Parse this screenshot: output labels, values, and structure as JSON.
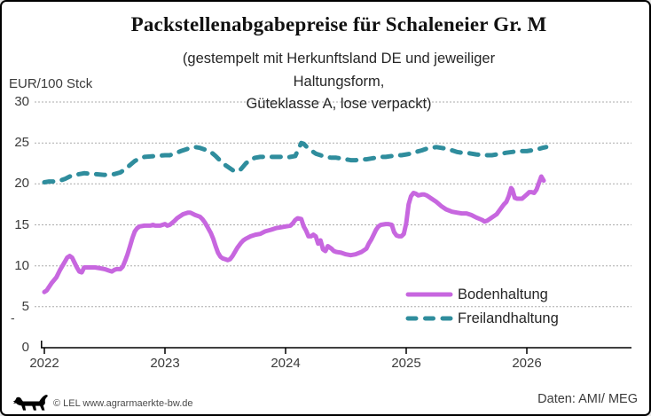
{
  "header": {
    "title": "Packstellenabgabepreise für Schaleneier Gr. M",
    "subtitle_line1": "(gestempelt mit Herkunftsland DE und jeweiliger",
    "subtitle_line2": "Haltungsform,",
    "subtitle_line3": "Güteklasse A, lose verpackt)"
  },
  "axes": {
    "y_unit_label": "EUR/100 Stck",
    "stray_dash": "-"
  },
  "legend": {
    "position": "inside lower right"
  },
  "footer": {
    "copyright": "© LEL www.agrarmaerkte-bw.de",
    "source": "Daten: AMI/ MEG",
    "logo_icon": "lel-lion-logo"
  },
  "chart_data": {
    "type": "line",
    "title": "Packstellenabgabepreise für Schaleneier Gr. M (gestempelt mit Herkunftsland DE und jeweiliger Haltungsform, Güteklasse A, lose verpackt)",
    "ylabel": "EUR/100 Stck",
    "xlabel": "",
    "ylim": [
      0,
      30
    ],
    "xlim": [
      2021.97,
      2026.87
    ],
    "grid": "horizontal dashed",
    "legend_position": "inside lower right",
    "y_ticks": [
      0,
      5,
      10,
      15,
      20,
      25,
      30
    ],
    "y_grid_values": [
      5,
      10,
      15,
      20,
      25,
      30
    ],
    "x_ticks": [
      2022,
      2023,
      2024,
      2025,
      2026
    ],
    "x_tick_labels": [
      "2022",
      "2023",
      "2024",
      "2025",
      "2026"
    ],
    "series": [
      {
        "name": "Bodenhaltung",
        "color": "#C767DF",
        "style": "solid",
        "points": [
          [
            2022.0,
            6.8
          ],
          [
            2022.02,
            7.0
          ],
          [
            2022.06,
            7.9
          ],
          [
            2022.1,
            8.6
          ],
          [
            2022.13,
            9.5
          ],
          [
            2022.17,
            10.5
          ],
          [
            2022.19,
            11.0
          ],
          [
            2022.21,
            11.2
          ],
          [
            2022.23,
            11.0
          ],
          [
            2022.25,
            10.4
          ],
          [
            2022.27,
            9.8
          ],
          [
            2022.29,
            9.3
          ],
          [
            2022.31,
            9.2
          ],
          [
            2022.33,
            9.8
          ],
          [
            2022.38,
            9.8
          ],
          [
            2022.42,
            9.8
          ],
          [
            2022.46,
            9.7
          ],
          [
            2022.5,
            9.6
          ],
          [
            2022.54,
            9.4
          ],
          [
            2022.56,
            9.3
          ],
          [
            2022.58,
            9.5
          ],
          [
            2022.6,
            9.6
          ],
          [
            2022.63,
            9.6
          ],
          [
            2022.65,
            9.9
          ],
          [
            2022.67,
            10.6
          ],
          [
            2022.69,
            11.4
          ],
          [
            2022.71,
            12.4
          ],
          [
            2022.73,
            13.4
          ],
          [
            2022.75,
            14.2
          ],
          [
            2022.77,
            14.6
          ],
          [
            2022.79,
            14.8
          ],
          [
            2022.83,
            14.9
          ],
          [
            2022.88,
            14.9
          ],
          [
            2022.9,
            15.0
          ],
          [
            2022.92,
            14.9
          ],
          [
            2022.96,
            14.9
          ],
          [
            2023.0,
            15.1
          ],
          [
            2023.02,
            14.9
          ],
          [
            2023.04,
            15.0
          ],
          [
            2023.08,
            15.5
          ],
          [
            2023.1,
            15.8
          ],
          [
            2023.13,
            16.1
          ],
          [
            2023.15,
            16.3
          ],
          [
            2023.17,
            16.4
          ],
          [
            2023.19,
            16.5
          ],
          [
            2023.21,
            16.5
          ],
          [
            2023.25,
            16.2
          ],
          [
            2023.29,
            16.0
          ],
          [
            2023.31,
            15.7
          ],
          [
            2023.33,
            15.3
          ],
          [
            2023.35,
            14.8
          ],
          [
            2023.38,
            14.0
          ],
          [
            2023.4,
            13.3
          ],
          [
            2023.42,
            12.4
          ],
          [
            2023.44,
            11.6
          ],
          [
            2023.46,
            11.1
          ],
          [
            2023.48,
            10.9
          ],
          [
            2023.5,
            10.8
          ],
          [
            2023.52,
            10.7
          ],
          [
            2023.54,
            10.8
          ],
          [
            2023.56,
            11.2
          ],
          [
            2023.58,
            11.7
          ],
          [
            2023.6,
            12.2
          ],
          [
            2023.63,
            12.8
          ],
          [
            2023.65,
            13.1
          ],
          [
            2023.67,
            13.3
          ],
          [
            2023.71,
            13.6
          ],
          [
            2023.75,
            13.8
          ],
          [
            2023.79,
            13.9
          ],
          [
            2023.83,
            14.2
          ],
          [
            2023.88,
            14.4
          ],
          [
            2023.92,
            14.6
          ],
          [
            2023.96,
            14.7
          ],
          [
            2024.0,
            14.8
          ],
          [
            2024.04,
            14.9
          ],
          [
            2024.06,
            15.2
          ],
          [
            2024.08,
            15.6
          ],
          [
            2024.1,
            15.8
          ],
          [
            2024.13,
            15.7
          ],
          [
            2024.15,
            14.8
          ],
          [
            2024.17,
            14.3
          ],
          [
            2024.19,
            13.6
          ],
          [
            2024.21,
            13.6
          ],
          [
            2024.23,
            13.8
          ],
          [
            2024.25,
            13.6
          ],
          [
            2024.27,
            12.7
          ],
          [
            2024.29,
            13.1
          ],
          [
            2024.31,
            12.0
          ],
          [
            2024.33,
            11.8
          ],
          [
            2024.35,
            12.4
          ],
          [
            2024.38,
            12.1
          ],
          [
            2024.4,
            11.8
          ],
          [
            2024.42,
            11.7
          ],
          [
            2024.46,
            11.6
          ],
          [
            2024.5,
            11.4
          ],
          [
            2024.54,
            11.3
          ],
          [
            2024.58,
            11.4
          ],
          [
            2024.63,
            11.7
          ],
          [
            2024.67,
            12.1
          ],
          [
            2024.69,
            12.7
          ],
          [
            2024.71,
            13.2
          ],
          [
            2024.73,
            13.8
          ],
          [
            2024.75,
            14.4
          ],
          [
            2024.77,
            14.8
          ],
          [
            2024.79,
            15.0
          ],
          [
            2024.83,
            15.1
          ],
          [
            2024.85,
            15.1
          ],
          [
            2024.88,
            15.0
          ],
          [
            2024.9,
            14.1
          ],
          [
            2024.92,
            13.7
          ],
          [
            2024.94,
            13.6
          ],
          [
            2024.96,
            13.6
          ],
          [
            2024.98,
            13.9
          ],
          [
            2025.0,
            15.2
          ],
          [
            2025.02,
            17.5
          ],
          [
            2025.04,
            18.5
          ],
          [
            2025.06,
            18.9
          ],
          [
            2025.08,
            18.8
          ],
          [
            2025.1,
            18.6
          ],
          [
            2025.13,
            18.7
          ],
          [
            2025.15,
            18.7
          ],
          [
            2025.17,
            18.6
          ],
          [
            2025.19,
            18.4
          ],
          [
            2025.21,
            18.2
          ],
          [
            2025.25,
            17.8
          ],
          [
            2025.29,
            17.3
          ],
          [
            2025.33,
            16.9
          ],
          [
            2025.38,
            16.6
          ],
          [
            2025.42,
            16.5
          ],
          [
            2025.46,
            16.4
          ],
          [
            2025.5,
            16.4
          ],
          [
            2025.54,
            16.2
          ],
          [
            2025.58,
            15.9
          ],
          [
            2025.63,
            15.6
          ],
          [
            2025.65,
            15.4
          ],
          [
            2025.67,
            15.5
          ],
          [
            2025.71,
            15.9
          ],
          [
            2025.75,
            16.3
          ],
          [
            2025.77,
            16.7
          ],
          [
            2025.79,
            17.1
          ],
          [
            2025.81,
            17.5
          ],
          [
            2025.83,
            17.8
          ],
          [
            2025.85,
            18.5
          ],
          [
            2025.87,
            19.5
          ],
          [
            2025.88,
            19.3
          ],
          [
            2025.9,
            18.3
          ],
          [
            2025.92,
            18.2
          ],
          [
            2025.96,
            18.2
          ],
          [
            2026.0,
            18.7
          ],
          [
            2026.02,
            19.0
          ],
          [
            2026.04,
            19.0
          ],
          [
            2026.06,
            18.9
          ],
          [
            2026.08,
            19.3
          ],
          [
            2026.1,
            20.1
          ],
          [
            2026.12,
            20.9
          ],
          [
            2026.14,
            20.4
          ]
        ]
      },
      {
        "name": "Freilandhaltung",
        "color": "#2F8D9D",
        "style": "dashed",
        "points": [
          [
            2022.0,
            20.2
          ],
          [
            2022.04,
            20.3
          ],
          [
            2022.08,
            20.3
          ],
          [
            2022.13,
            20.4
          ],
          [
            2022.17,
            20.6
          ],
          [
            2022.21,
            20.9
          ],
          [
            2022.25,
            21.1
          ],
          [
            2022.29,
            21.2
          ],
          [
            2022.33,
            21.3
          ],
          [
            2022.42,
            21.2
          ],
          [
            2022.5,
            21.1
          ],
          [
            2022.58,
            21.2
          ],
          [
            2022.63,
            21.4
          ],
          [
            2022.67,
            21.8
          ],
          [
            2022.71,
            22.3
          ],
          [
            2022.75,
            22.8
          ],
          [
            2022.79,
            23.1
          ],
          [
            2022.83,
            23.3
          ],
          [
            2022.92,
            23.4
          ],
          [
            2023.0,
            23.5
          ],
          [
            2023.04,
            23.5
          ],
          [
            2023.08,
            23.7
          ],
          [
            2023.13,
            24.0
          ],
          [
            2023.17,
            24.2
          ],
          [
            2023.21,
            24.4
          ],
          [
            2023.25,
            24.5
          ],
          [
            2023.29,
            24.4
          ],
          [
            2023.33,
            24.2
          ],
          [
            2023.38,
            23.9
          ],
          [
            2023.42,
            23.4
          ],
          [
            2023.46,
            22.8
          ],
          [
            2023.5,
            22.3
          ],
          [
            2023.54,
            21.9
          ],
          [
            2023.58,
            21.5
          ],
          [
            2023.63,
            21.8
          ],
          [
            2023.67,
            22.5
          ],
          [
            2023.71,
            23.0
          ],
          [
            2023.75,
            23.2
          ],
          [
            2023.79,
            23.3
          ],
          [
            2023.83,
            23.3
          ],
          [
            2023.88,
            23.3
          ],
          [
            2023.92,
            23.3
          ],
          [
            2023.96,
            23.3
          ],
          [
            2024.0,
            23.2
          ],
          [
            2024.04,
            23.3
          ],
          [
            2024.08,
            23.4
          ],
          [
            2024.13,
            25.0
          ],
          [
            2024.15,
            24.9
          ],
          [
            2024.17,
            24.6
          ],
          [
            2024.21,
            24.1
          ],
          [
            2024.25,
            23.7
          ],
          [
            2024.29,
            23.5
          ],
          [
            2024.33,
            23.3
          ],
          [
            2024.38,
            23.2
          ],
          [
            2024.42,
            23.2
          ],
          [
            2024.46,
            23.1
          ],
          [
            2024.5,
            23.0
          ],
          [
            2024.54,
            22.9
          ],
          [
            2024.58,
            22.9
          ],
          [
            2024.63,
            23.0
          ],
          [
            2024.67,
            23.0
          ],
          [
            2024.71,
            23.1
          ],
          [
            2024.75,
            23.2
          ],
          [
            2024.79,
            23.3
          ],
          [
            2024.83,
            23.3
          ],
          [
            2024.88,
            23.4
          ],
          [
            2024.92,
            23.5
          ],
          [
            2024.96,
            23.5
          ],
          [
            2025.0,
            23.6
          ],
          [
            2025.04,
            23.7
          ],
          [
            2025.08,
            23.9
          ],
          [
            2025.13,
            24.1
          ],
          [
            2025.17,
            24.3
          ],
          [
            2025.21,
            24.4
          ],
          [
            2025.25,
            24.5
          ],
          [
            2025.29,
            24.4
          ],
          [
            2025.33,
            24.3
          ],
          [
            2025.38,
            24.1
          ],
          [
            2025.42,
            23.9
          ],
          [
            2025.46,
            23.8
          ],
          [
            2025.5,
            23.8
          ],
          [
            2025.54,
            23.7
          ],
          [
            2025.58,
            23.6
          ],
          [
            2025.63,
            23.5
          ],
          [
            2025.67,
            23.5
          ],
          [
            2025.71,
            23.5
          ],
          [
            2025.75,
            23.6
          ],
          [
            2025.79,
            23.7
          ],
          [
            2025.83,
            23.8
          ],
          [
            2025.88,
            23.9
          ],
          [
            2025.92,
            24.0
          ],
          [
            2025.96,
            24.0
          ],
          [
            2026.0,
            24.0
          ],
          [
            2026.04,
            24.1
          ],
          [
            2026.08,
            24.2
          ],
          [
            2026.13,
            24.4
          ],
          [
            2026.16,
            24.5
          ]
        ]
      }
    ]
  }
}
